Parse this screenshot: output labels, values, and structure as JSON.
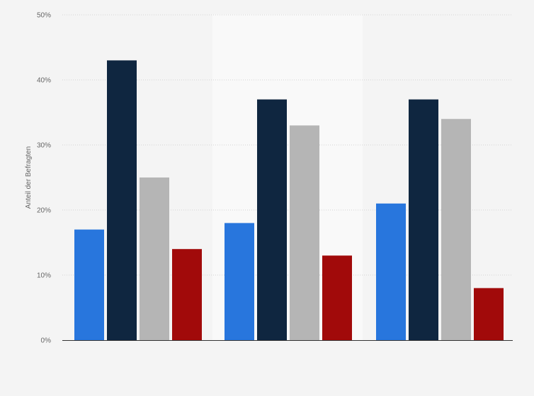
{
  "chart_data": {
    "type": "bar",
    "categories": [
      "",
      "",
      ""
    ],
    "series": [
      {
        "values": [
          17,
          18,
          21
        ],
        "color": "#2876dd"
      },
      {
        "values": [
          43,
          37,
          37
        ],
        "color": "#0f2640"
      },
      {
        "values": [
          25,
          33,
          34
        ],
        "color": "#b5b5b5"
      },
      {
        "values": [
          14,
          13,
          8
        ],
        "color": "#a10a0a"
      }
    ],
    "ylabel": "Anteil der Befragten",
    "xlabel": "",
    "ylim": [
      0,
      50
    ],
    "yticks": [
      0,
      10,
      20,
      30,
      40,
      50
    ],
    "ytick_labels": [
      "0%",
      "10%",
      "20%",
      "30%",
      "40%",
      "50%"
    ],
    "grid": true,
    "grid_style": "dotted",
    "highlighted_category_index": 1,
    "background_color": "#f4f4f4",
    "highlight_color": "#f9f9f9"
  }
}
